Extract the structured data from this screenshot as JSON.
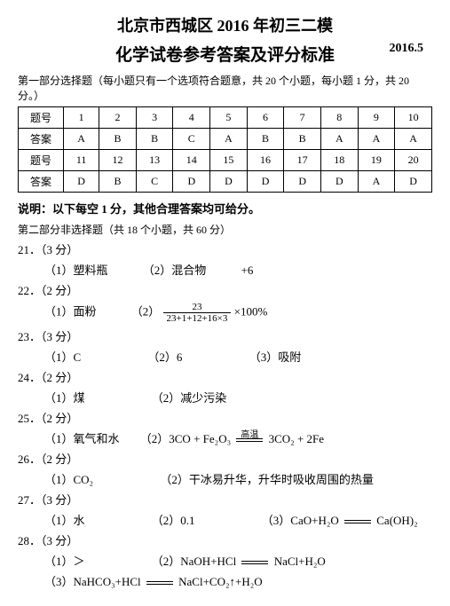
{
  "title_main": "北京市西城区 2016 年初三二模",
  "title_sub": "化学试卷参考答案及评分标准",
  "title_date": "2016.5",
  "part1_heading": "第一部分选择题（每小题只有一个选项符合题意，共 20 个小题，每小题 1 分，共 20 分。）",
  "table": {
    "row_label": "题号",
    "ans_label": "答案",
    "nums1": [
      "1",
      "2",
      "3",
      "4",
      "5",
      "6",
      "7",
      "8",
      "9",
      "10"
    ],
    "ans1": [
      "A",
      "B",
      "B",
      "C",
      "A",
      "B",
      "B",
      "A",
      "A",
      "A"
    ],
    "nums2": [
      "11",
      "12",
      "13",
      "14",
      "15",
      "16",
      "17",
      "18",
      "19",
      "20"
    ],
    "ans2": [
      "D",
      "B",
      "C",
      "D",
      "D",
      "D",
      "D",
      "D",
      "A",
      "D"
    ]
  },
  "note": "说明：以下每空 1 分，其他合理答案均可给分。",
  "part2_heading": "第二部分非选择题（共 18 个小题，共 60 分）",
  "q21": {
    "num": "21．（3 分）",
    "a": "（1）塑料瓶",
    "b": "（2）混合物",
    "c": "+6"
  },
  "q22": {
    "num": "22．（2 分）",
    "a": "（1）面粉",
    "b": "（2）",
    "frac_num": "23",
    "frac_den": "23+1+12+16×3",
    "tail": "×100%"
  },
  "q23": {
    "num": "23．（3 分）",
    "a": "（1）C",
    "b": "（2）6",
    "c": "（3）吸附"
  },
  "q24": {
    "num": "24．（2 分）",
    "a": "（1）煤",
    "b": "（2）减少污染"
  },
  "q25": {
    "num": "25．（2 分）",
    "a": "（1）氧气和水",
    "b": "（2）3CO + Fe₂O₃",
    "cond": "高温",
    "c": "3CO₂ + 2Fe"
  },
  "q26": {
    "num": "26．（2 分）",
    "a": "（1）CO₂",
    "b": "（2）干冰易升华，升华时吸收周围的热量"
  },
  "q27": {
    "num": "27．（3 分）",
    "a": "（1）水",
    "b": "（2）0.1",
    "c": "（3）CaO+H₂O",
    "d": "Ca(OH)₂"
  },
  "q28": {
    "num": "28．（3 分）",
    "a": "（1）＞",
    "b": "（2）NaOH+HCl",
    "c": "NaCl+H₂O",
    "d": "（3）NaHCO₃+HCl",
    "e": "NaCl+CO₂↑+H₂O"
  }
}
